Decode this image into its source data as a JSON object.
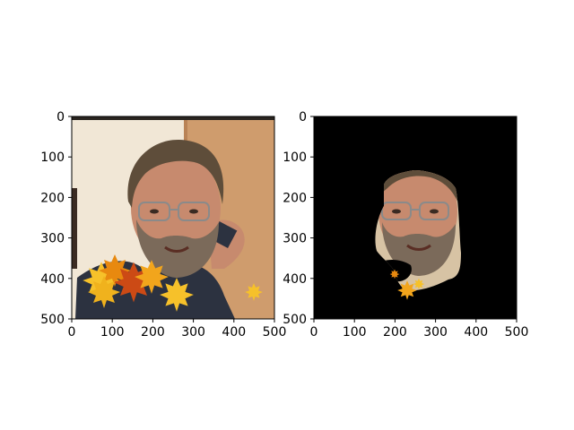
{
  "figure": {
    "background": "#ffffff"
  },
  "chart_data": [
    {
      "type": "image",
      "title": "",
      "xlabel": "",
      "ylabel": "",
      "xlim": [
        0,
        500
      ],
      "ylim": [
        500,
        0
      ],
      "xticks": [
        0,
        100,
        200,
        300,
        400,
        500
      ],
      "yticks": [
        0,
        100,
        200,
        300,
        400,
        500
      ],
      "grid": false,
      "content": "photo of a bearded man with glasses; autumn leaves overlay at bottom"
    },
    {
      "type": "image",
      "title": "",
      "xlabel": "",
      "ylabel": "",
      "xlim": [
        0,
        500
      ],
      "ylim": [
        500,
        0
      ],
      "xticks": [
        0,
        100,
        200,
        300,
        400,
        500
      ],
      "yticks": [
        0,
        100,
        200,
        300,
        400,
        500
      ],
      "grid": false,
      "content": "masked face region on black background"
    }
  ],
  "colors": {
    "mask_background": "#000000",
    "wall": "#f1e7d6",
    "door": "#cf9c6d",
    "shirt": "#2c3240",
    "skin": "#c78a6e",
    "hair": "#5e4d3a",
    "beard": "#7b6a5a",
    "leaf_orange": "#e8890f",
    "leaf_yellow": "#f6c12a",
    "leaf_red": "#cc4a15"
  }
}
